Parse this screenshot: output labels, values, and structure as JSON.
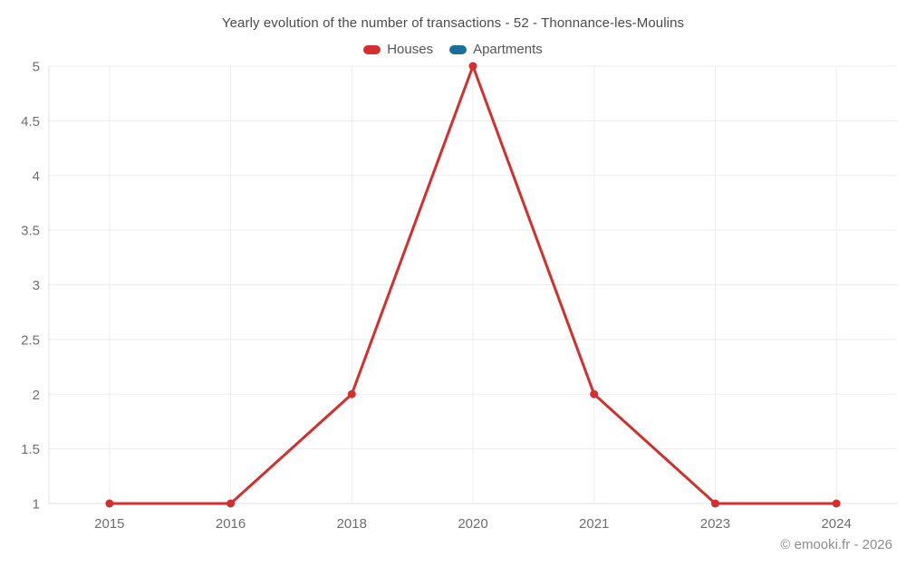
{
  "header": {
    "title": "Yearly evolution of the number of transactions - 52 - Thonnance-les-Moulins"
  },
  "legend": {
    "items": [
      {
        "label": "Houses",
        "color": "#d32f2f"
      },
      {
        "label": "Apartments",
        "color": "#176f9e"
      }
    ]
  },
  "footer": {
    "credit": "© emooki.fr - 2026"
  },
  "colors": {
    "grid": "#ededed",
    "axis": "#e0e0e0",
    "tick_text": "#6e6e6e",
    "title_text": "#4a4a4a",
    "footer_text": "#8c8c8c",
    "houses": "#d32f2f",
    "apartments": "#176f9e",
    "background": "#ffffff"
  },
  "chart_data": {
    "type": "line",
    "title": "Yearly evolution of the number of transactions - 52 - Thonnance-les-Moulins",
    "categories": [
      "2015",
      "2016",
      "2018",
      "2020",
      "2021",
      "2023",
      "2024"
    ],
    "series": [
      {
        "name": "Houses",
        "color": "#d32f2f",
        "values": [
          1,
          1,
          2,
          5,
          2,
          1,
          1
        ]
      },
      {
        "name": "Apartments",
        "color": "#176f9e",
        "values": []
      }
    ],
    "xlabel": "",
    "ylabel": "",
    "ylim": [
      1,
      5
    ],
    "ytick_step": 0.5,
    "yticks": [
      1,
      1.5,
      2,
      2.5,
      3,
      3.5,
      4,
      4.5,
      5
    ],
    "grid": true,
    "legend_position": "top",
    "marker_radius": 4.5,
    "line_width": 3
  }
}
